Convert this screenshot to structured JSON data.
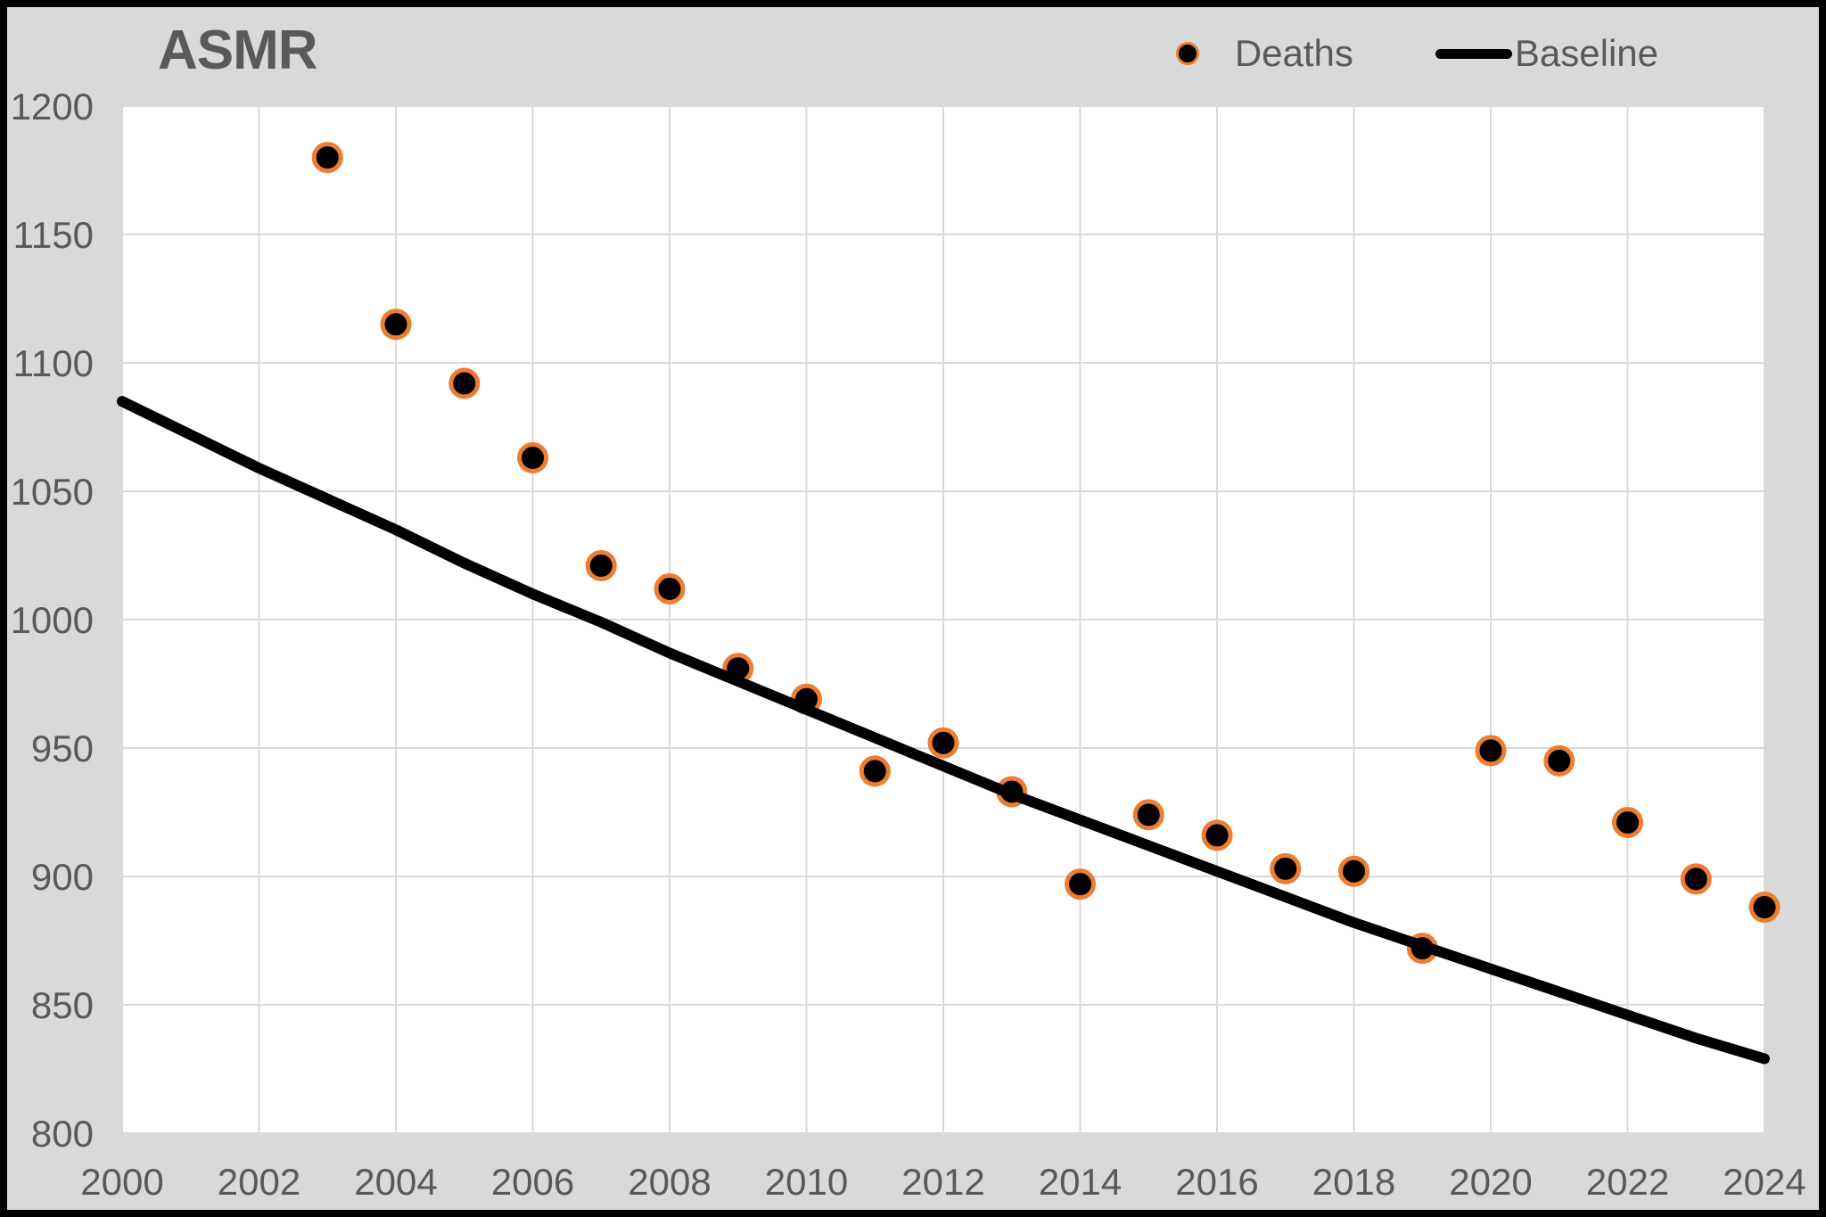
{
  "title": "ASMR",
  "legend": {
    "position": "top-right",
    "items": [
      {
        "label": "Deaths",
        "swatch": "ring-dot-marker"
      },
      {
        "label": "Baseline",
        "swatch": "line-sample"
      }
    ]
  },
  "colors": {
    "background": "#D9D9D9",
    "plot_background": "#FFFFFF",
    "gridline": "#D9D9D9",
    "text": "#595959",
    "marker_fill": "#000000",
    "marker_ring": "#ED7D31",
    "baseline_line": "#000000",
    "outer_border": "#000000"
  },
  "chart_data": {
    "type": "scatter",
    "title": "ASMR",
    "xlabel": "",
    "ylabel": "",
    "xlim": [
      2000,
      2024
    ],
    "ylim": [
      800,
      1200
    ],
    "x_ticks": [
      2000,
      2002,
      2004,
      2006,
      2008,
      2010,
      2012,
      2014,
      2016,
      2018,
      2020,
      2022,
      2024
    ],
    "y_ticks": [
      800,
      850,
      900,
      950,
      1000,
      1050,
      1100,
      1150,
      1200
    ],
    "grid": true,
    "legend_position": "top-right",
    "series": [
      {
        "name": "Deaths",
        "type": "scatter",
        "x": [
          2003,
          2004,
          2005,
          2006,
          2007,
          2008,
          2009,
          2010,
          2011,
          2012,
          2013,
          2014,
          2015,
          2016,
          2017,
          2018,
          2019,
          2020,
          2021,
          2022,
          2023,
          2024
        ],
        "y": [
          1180,
          1115,
          1092,
          1063,
          1021,
          1012,
          981,
          969,
          941,
          952,
          933,
          897,
          924,
          916,
          903,
          902,
          872,
          949,
          945,
          921,
          899,
          888
        ]
      },
      {
        "name": "Baseline",
        "type": "line",
        "x": [
          2000,
          2001,
          2002,
          2003,
          2004,
          2005,
          2006,
          2007,
          2008,
          2009,
          2010,
          2011,
          2012,
          2013,
          2014,
          2015,
          2016,
          2017,
          2018,
          2019,
          2020,
          2021,
          2022,
          2023,
          2024
        ],
        "y": [
          1085,
          1072,
          1059,
          1047,
          1035,
          1022,
          1010,
          999,
          987,
          976,
          965,
          954,
          943,
          932,
          922,
          912,
          902,
          892,
          882,
          873,
          864,
          855,
          846,
          837,
          829
        ]
      }
    ]
  }
}
